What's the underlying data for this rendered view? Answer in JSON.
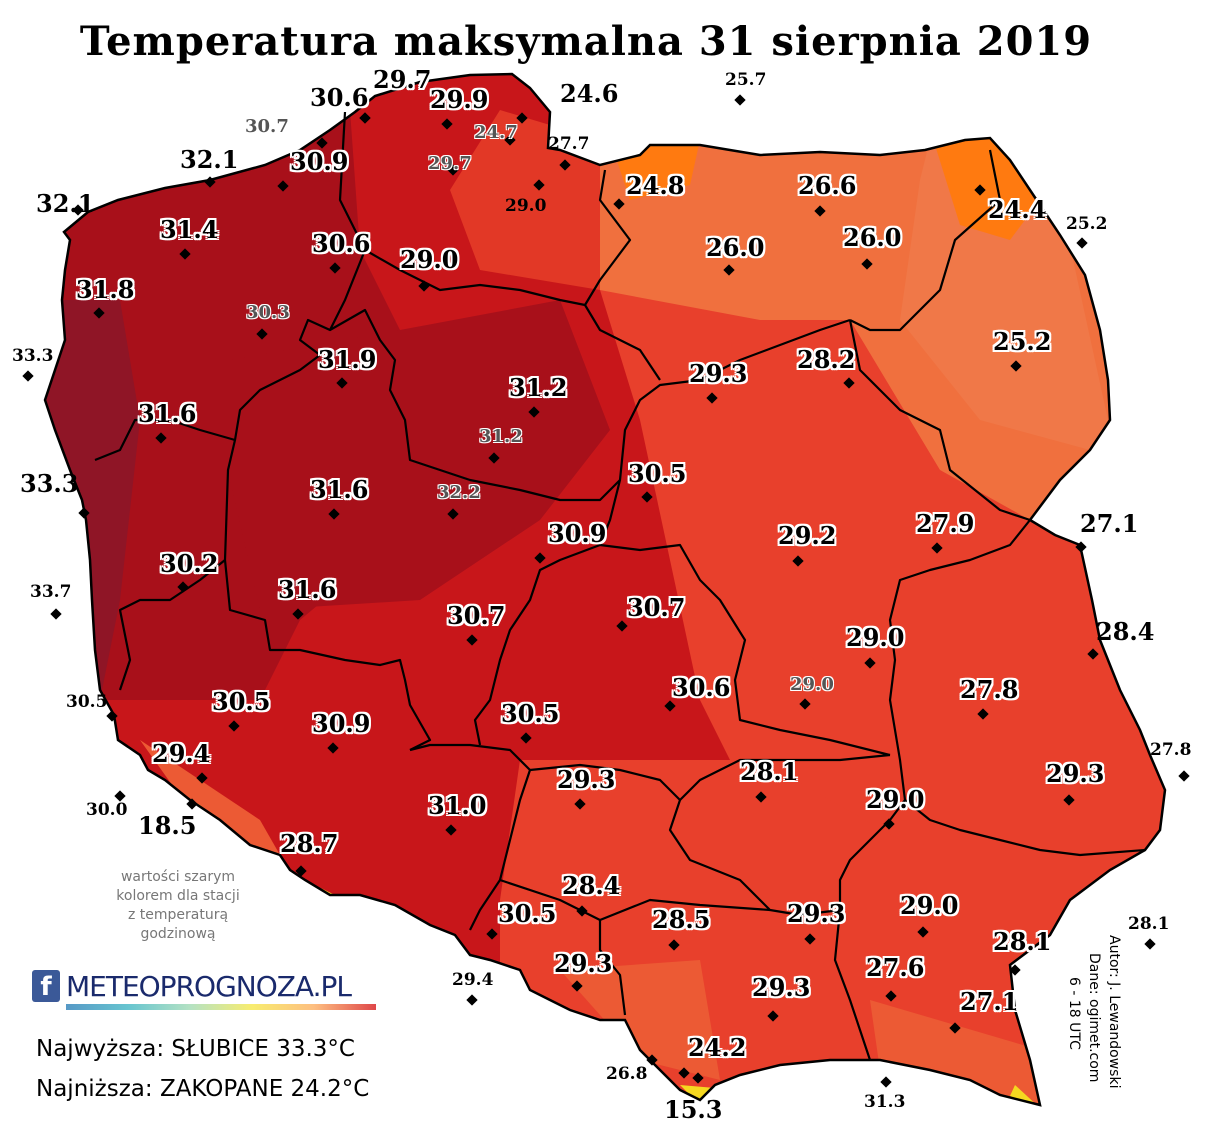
{
  "title": "Temperatura maksymalna 31 sierpnia 2019",
  "note": [
    "wartości szarym",
    "kolorem dla stacji",
    "z temperaturą",
    "godzinową"
  ],
  "logo": {
    "icon": "facebook-icon",
    "text": "METEOPROGNOZA.PL"
  },
  "extremes": {
    "max": "Najwyższa: SŁUBICE 33.3°C",
    "min": "Najniższa: ZAKOPANE 24.2°C"
  },
  "credits": {
    "author": "Autor: J. Lewandowski",
    "data": "Dane: ogimet.com",
    "hours": "6 - 18 UTC"
  },
  "colors": {
    "hottest": "#8f1526",
    "very_hot": "#a8101a",
    "hot": "#c8161a",
    "warm": "#e8402c",
    "mild": "#f0703e",
    "coolest": "#ff7a10",
    "mountain": "#f5d820"
  },
  "stations": [
    {
      "v": "30.6",
      "s": "big"
    },
    {
      "v": "29.7",
      "s": "big"
    },
    {
      "v": "29.9",
      "s": "big"
    },
    {
      "v": "24.6",
      "s": "outbig"
    },
    {
      "v": "25.7",
      "s": "outside"
    },
    {
      "v": "30.7",
      "s": "grey"
    },
    {
      "v": "24.7",
      "s": "grey"
    },
    {
      "v": "27.7",
      "s": "small"
    },
    {
      "v": "32.1",
      "s": "big"
    },
    {
      "v": "30.9",
      "s": "big"
    },
    {
      "v": "29.7",
      "s": "grey"
    },
    {
      "v": "29.0",
      "s": "small"
    },
    {
      "v": "24.8",
      "s": "big"
    },
    {
      "v": "26.6",
      "s": "big"
    },
    {
      "v": "24.4",
      "s": "big"
    },
    {
      "v": "32.1",
      "s": "outbig"
    },
    {
      "v": "25.2",
      "s": "outside"
    },
    {
      "v": "31.4",
      "s": "big"
    },
    {
      "v": "30.6",
      "s": "big"
    },
    {
      "v": "26.0",
      "s": "big"
    },
    {
      "v": "26.0",
      "s": "big"
    },
    {
      "v": "29.0",
      "s": "big"
    },
    {
      "v": "31.8",
      "s": "big"
    },
    {
      "v": "30.3",
      "s": "grey"
    },
    {
      "v": "25.2",
      "s": "big"
    },
    {
      "v": "33.3",
      "s": "outside"
    },
    {
      "v": "31.9",
      "s": "big"
    },
    {
      "v": "28.2",
      "s": "big"
    },
    {
      "v": "29.3",
      "s": "big"
    },
    {
      "v": "31.2",
      "s": "big"
    },
    {
      "v": "31.6",
      "s": "big"
    },
    {
      "v": "31.2",
      "s": "grey"
    },
    {
      "v": "33.3",
      "s": "outbig"
    },
    {
      "v": "30.5",
      "s": "big"
    },
    {
      "v": "31.6",
      "s": "big"
    },
    {
      "v": "32.2",
      "s": "grey"
    },
    {
      "v": "27.1",
      "s": "outbig"
    },
    {
      "v": "27.9",
      "s": "big"
    },
    {
      "v": "30.9",
      "s": "big"
    },
    {
      "v": "29.2",
      "s": "big"
    },
    {
      "v": "30.2",
      "s": "big"
    },
    {
      "v": "33.7",
      "s": "outside"
    },
    {
      "v": "31.6",
      "s": "big"
    },
    {
      "v": "30.7",
      "s": "big"
    },
    {
      "v": "30.7",
      "s": "big"
    },
    {
      "v": "28.4",
      "s": "outbig"
    },
    {
      "v": "29.0",
      "s": "big"
    },
    {
      "v": "30.6",
      "s": "big"
    },
    {
      "v": "29.0",
      "s": "grey"
    },
    {
      "v": "27.8",
      "s": "big"
    },
    {
      "v": "30.5",
      "s": "outside"
    },
    {
      "v": "30.5",
      "s": "big"
    },
    {
      "v": "30.9",
      "s": "big"
    },
    {
      "v": "30.5",
      "s": "big"
    },
    {
      "v": "29.4",
      "s": "big"
    },
    {
      "v": "27.8",
      "s": "outside"
    },
    {
      "v": "29.3",
      "s": "big"
    },
    {
      "v": "28.1",
      "s": "big"
    },
    {
      "v": "29.0",
      "s": "big"
    },
    {
      "v": "29.3",
      "s": "big"
    },
    {
      "v": "30.0",
      "s": "outside"
    },
    {
      "v": "18.5",
      "s": "outbig"
    },
    {
      "v": "31.0",
      "s": "big"
    },
    {
      "v": "28.7",
      "s": "big"
    },
    {
      "v": "28.4",
      "s": "big"
    },
    {
      "v": "30.5",
      "s": "big"
    },
    {
      "v": "28.5",
      "s": "big"
    },
    {
      "v": "29.3",
      "s": "big"
    },
    {
      "v": "29.0",
      "s": "big"
    },
    {
      "v": "28.1",
      "s": "outside"
    },
    {
      "v": "28.1",
      "s": "big"
    },
    {
      "v": "29.4",
      "s": "outside"
    },
    {
      "v": "29.3",
      "s": "big"
    },
    {
      "v": "27.6",
      "s": "big"
    },
    {
      "v": "29.3",
      "s": "big"
    },
    {
      "v": "27.1",
      "s": "big"
    },
    {
      "v": "24.2",
      "s": "big"
    },
    {
      "v": "26.8",
      "s": "outside"
    },
    {
      "v": "31.3",
      "s": "outside"
    },
    {
      "v": "15.3",
      "s": "outbig"
    }
  ]
}
